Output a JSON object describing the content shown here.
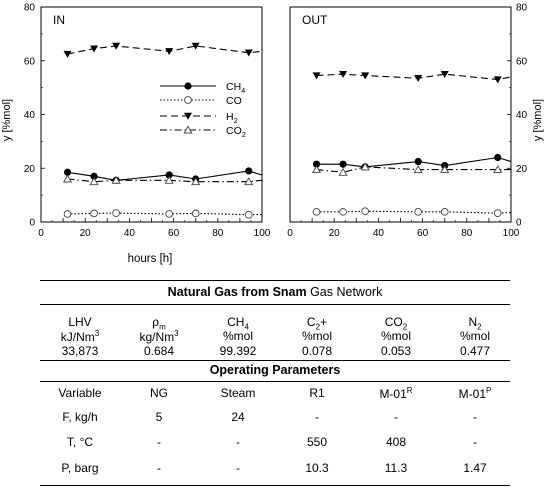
{
  "chart_data": [
    {
      "type": "line",
      "panel_label": "IN",
      "xlabel": "",
      "ylabel": "y [%mol]",
      "xlim": [
        0,
        100
      ],
      "ylim": [
        0,
        80
      ],
      "x_ticks": [
        "0",
        "10",
        "20",
        "30",
        "40",
        "50",
        "60",
        "70",
        "80",
        "90",
        "100"
      ],
      "y_ticks": [
        "0",
        "20",
        "40",
        "60",
        "80"
      ],
      "legend_position": "center-right",
      "series": [
        {
          "name": "CH4",
          "style": "solid",
          "marker": "filled-circle",
          "x": [
            12,
            24,
            34,
            58,
            70,
            94,
            100
          ],
          "y": [
            18.5,
            17,
            15.5,
            17.5,
            16,
            19,
            17.5
          ]
        },
        {
          "name": "CO",
          "style": "dotted",
          "marker": "open-circle",
          "x": [
            12,
            24,
            34,
            58,
            70,
            94,
            100
          ],
          "y": [
            3,
            3.2,
            3.3,
            3,
            3.2,
            2.7,
            2.8
          ]
        },
        {
          "name": "H2",
          "style": "dashed",
          "marker": "filled-triangle-down",
          "x": [
            12,
            24,
            34,
            58,
            70,
            94,
            100
          ],
          "y": [
            62.5,
            64.5,
            65.5,
            63.5,
            65.5,
            63,
            63.5
          ]
        },
        {
          "name": "CO2",
          "style": "dashdot",
          "marker": "open-triangle-up",
          "x": [
            12,
            24,
            34,
            58,
            70,
            94,
            100
          ],
          "y": [
            16,
            15,
            15.5,
            15.5,
            15,
            15,
            15.5
          ]
        }
      ]
    },
    {
      "type": "line",
      "panel_label": "OUT",
      "xlabel": "",
      "ylabel": "y [%mol]",
      "xlim": [
        0,
        100
      ],
      "ylim": [
        0,
        80
      ],
      "x_ticks": [
        "0",
        "10",
        "20",
        "30",
        "40",
        "50",
        "60",
        "70",
        "80",
        "90",
        "100"
      ],
      "y_ticks": [
        "0",
        "20",
        "40",
        "60",
        "80"
      ],
      "series": [
        {
          "name": "CH4",
          "style": "solid",
          "marker": "filled-circle",
          "x": [
            12,
            24,
            34,
            58,
            70,
            94,
            100
          ],
          "y": [
            21.5,
            21.5,
            20.5,
            22.5,
            21,
            24,
            22.5
          ]
        },
        {
          "name": "CO",
          "style": "dotted",
          "marker": "open-circle",
          "x": [
            12,
            24,
            34,
            58,
            70,
            94,
            100
          ],
          "y": [
            3.8,
            3.8,
            4,
            3.8,
            3.8,
            3.3,
            3.5
          ]
        },
        {
          "name": "H2",
          "style": "dashed",
          "marker": "filled-triangle-down",
          "x": [
            12,
            24,
            34,
            58,
            70,
            94,
            100
          ],
          "y": [
            54.5,
            55,
            54.5,
            53.5,
            55,
            53,
            54
          ]
        },
        {
          "name": "CO2",
          "style": "dashdot",
          "marker": "open-triangle-up",
          "x": [
            12,
            24,
            34,
            58,
            70,
            94,
            100
          ],
          "y": [
            19.5,
            18.5,
            20.5,
            19.5,
            19.5,
            19.5,
            19.5
          ]
        }
      ]
    }
  ],
  "shared_xlabel": "hours [h]",
  "legend_labels": {
    "CH4": [
      "CH",
      "4"
    ],
    "CO": [
      "CO",
      ""
    ],
    "H2": [
      "H",
      "2"
    ],
    "CO2": [
      "CO",
      "2"
    ]
  },
  "table1": {
    "title_bold": "Natural Gas from ",
    "title_bold2": "Snam",
    "title_rest": " Gas Network",
    "headers": [
      {
        "base": "LHV",
        "sub": "",
        "sup": ""
      },
      {
        "base": "ρ",
        "sub": "m",
        "sup": ""
      },
      {
        "base": "CH",
        "sub": "4",
        "sup": ""
      },
      {
        "base": "C",
        "sub": "2",
        "sup": "+"
      },
      {
        "base": "CO",
        "sub": "2",
        "sup": ""
      },
      {
        "base": "N",
        "sub": "2",
        "sup": ""
      }
    ],
    "units": [
      {
        "base": "kJ/Nm",
        "sup": "3"
      },
      {
        "base": "kg/Nm",
        "sup": "3"
      },
      {
        "base": "%mol",
        "sup": ""
      },
      {
        "base": "%mol",
        "sup": ""
      },
      {
        "base": "%mol",
        "sup": ""
      },
      {
        "base": "%mol",
        "sup": ""
      }
    ],
    "values": [
      "33,873",
      "0.684",
      "99.392",
      "0.078",
      "0.053",
      "0.477"
    ]
  },
  "table2": {
    "title": "Operating Parameters",
    "headers": [
      {
        "base": "Variable",
        "sup": ""
      },
      {
        "base": "NG",
        "sup": ""
      },
      {
        "base": "Steam",
        "sup": ""
      },
      {
        "base": "R1",
        "sup": ""
      },
      {
        "base": "M-01",
        "sup": "R"
      },
      {
        "base": "M-01",
        "sup": "P"
      }
    ],
    "rows": [
      [
        "F, kg/h",
        "5",
        "24",
        "-",
        "-",
        "-"
      ],
      [
        "T, °C",
        "-",
        "-",
        "550",
        "408",
        "-"
      ],
      [
        "P, barg",
        "-",
        "-",
        "10.3",
        "11.3",
        "1.47"
      ]
    ]
  }
}
